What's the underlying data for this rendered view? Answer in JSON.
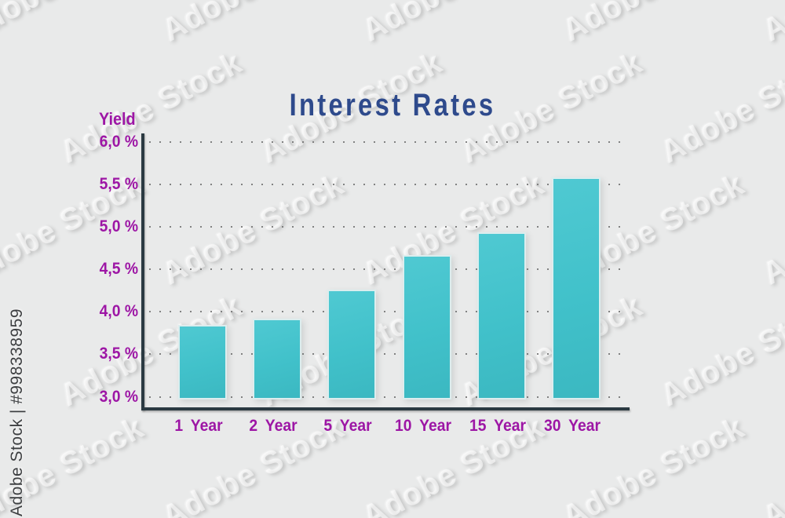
{
  "watermark": {
    "pattern_label": "Adobe Stock",
    "sidebar_label": "Adobe Stock | #998338959"
  },
  "chart_data": {
    "type": "bar",
    "title": "Interest Rates",
    "ylabel": "Yield",
    "xlabel": "",
    "unit": "%",
    "categories": [
      "1 Year",
      "2 Year",
      "5 Year",
      "10 Year",
      "15 Year",
      "30 Year"
    ],
    "values": [
      3.85,
      3.92,
      4.26,
      4.67,
      4.94,
      5.58
    ],
    "ylim": [
      3.0,
      6.0
    ],
    "ytick_step": 0.5,
    "yticks": [
      {
        "label": "6,0 %",
        "value": 6.0
      },
      {
        "label": "5,5 %",
        "value": 5.5
      },
      {
        "label": "5,0 %",
        "value": 5.0
      },
      {
        "label": "4,5 %",
        "value": 4.5
      },
      {
        "label": "4,0 %",
        "value": 4.0
      },
      {
        "label": "3,5 %",
        "value": 3.5
      },
      {
        "label": "3,0 %",
        "value": 3.0
      }
    ],
    "grid": "horizontal-dotted",
    "legend_position": "none",
    "colors": {
      "background": "#e9eaea",
      "bar": "#41c1ca",
      "title": "#2e4a8c",
      "labels": "#9d16a5",
      "axis": "#2b3a42"
    }
  }
}
